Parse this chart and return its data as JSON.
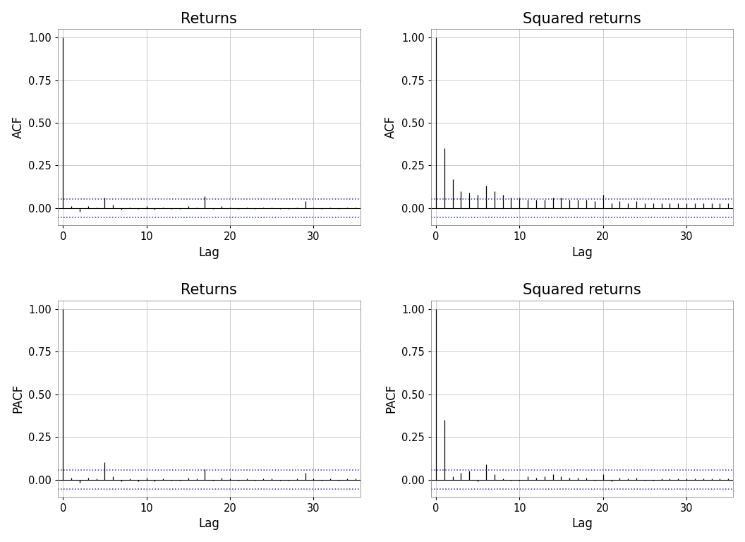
{
  "acf_returns": [
    1.0,
    0.01,
    -0.02,
    0.01,
    0.005,
    0.06,
    0.02,
    -0.01,
    0.005,
    -0.005,
    0.01,
    -0.01,
    0.005,
    -0.005,
    -0.005,
    0.01,
    0.005,
    0.07,
    -0.005,
    0.01,
    0.005,
    -0.005,
    0.005,
    -0.005,
    0.005,
    0.005,
    -0.005,
    -0.005,
    0.005,
    0.04,
    0.005,
    -0.005,
    0.005,
    -0.005,
    0.005,
    0.005
  ],
  "acf_sq_returns": [
    1.0,
    0.35,
    0.17,
    0.1,
    0.09,
    0.08,
    0.13,
    0.1,
    0.08,
    0.06,
    0.06,
    0.05,
    0.05,
    0.05,
    0.06,
    0.06,
    0.05,
    0.05,
    0.05,
    0.04,
    0.08,
    0.03,
    0.04,
    0.03,
    0.04,
    0.03,
    0.03,
    0.03,
    0.03,
    0.03,
    0.03,
    0.03,
    0.03,
    0.03,
    0.03,
    0.03
  ],
  "pacf_returns": [
    1.0,
    0.01,
    -0.02,
    0.01,
    0.005,
    0.1,
    0.02,
    -0.01,
    0.005,
    -0.01,
    0.01,
    -0.01,
    0.005,
    -0.005,
    -0.005,
    0.01,
    0.005,
    0.06,
    -0.005,
    0.01,
    0.005,
    -0.005,
    0.005,
    -0.005,
    0.005,
    0.005,
    -0.005,
    -0.005,
    0.005,
    0.04,
    0.005,
    -0.005,
    0.005,
    -0.005,
    0.005,
    0.005
  ],
  "pacf_sq_returns": [
    1.0,
    0.35,
    0.02,
    0.04,
    0.05,
    -0.01,
    0.09,
    0.03,
    0.005,
    -0.005,
    -0.005,
    0.02,
    0.01,
    0.02,
    0.03,
    0.02,
    0.01,
    0.01,
    0.01,
    -0.005,
    0.03,
    -0.01,
    0.01,
    0.005,
    0.01,
    -0.005,
    -0.005,
    0.005,
    0.005,
    0.005,
    0.005,
    0.005,
    0.005,
    0.005,
    0.005,
    0.005
  ],
  "ci": 0.055,
  "n_lags": 35,
  "ylim": [
    -0.1,
    1.05
  ],
  "yticks": [
    0.0,
    0.25,
    0.5,
    0.75,
    1.0
  ],
  "xticks": [
    0,
    10,
    20,
    30
  ],
  "bg_color": "#ffffff",
  "fig_bg_color": "#ffffff",
  "bar_color": "#000000",
  "ci_color": "#3333aa",
  "grid_color": "#cccccc",
  "title_fontsize": 15,
  "label_fontsize": 12,
  "tick_fontsize": 10.5,
  "title_fontweight": "normal"
}
